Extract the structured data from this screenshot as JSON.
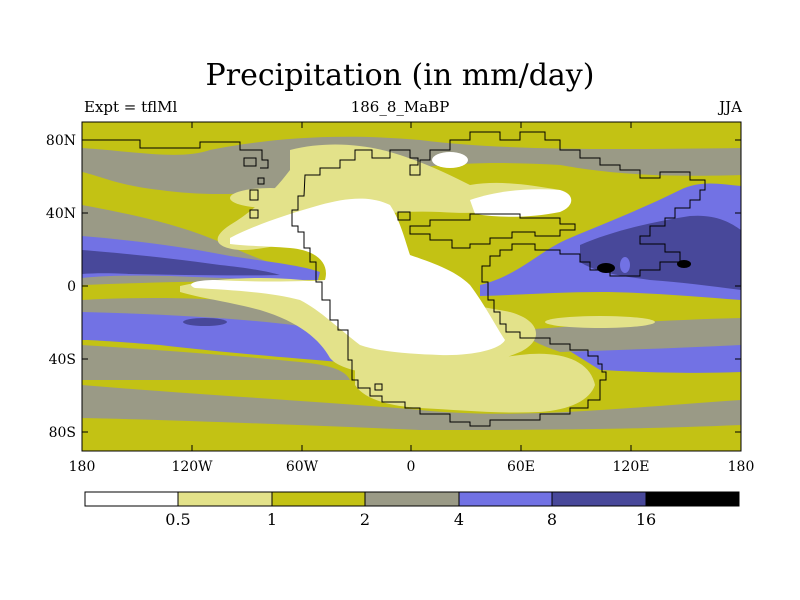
{
  "title": "Precipitation (in mm/day)",
  "subtitle_left": "Expt = tflMl",
  "subtitle_center": "186_8_MaBP",
  "subtitle_right": "JJA",
  "map": {
    "lat_labels": [
      "80N",
      "40N",
      "0",
      "40S",
      "80S"
    ],
    "lon_labels": [
      "180",
      "120W",
      "60W",
      "0",
      "60E",
      "120E",
      "180"
    ]
  },
  "colorbar": {
    "colors": [
      "#ffffff",
      "#e3e28a",
      "#c3c214",
      "#9a9a86",
      "#7272e4",
      "#48489a",
      "#000000"
    ],
    "levels": [
      "0.5",
      "1",
      "2",
      "4",
      "8",
      "16"
    ]
  }
}
